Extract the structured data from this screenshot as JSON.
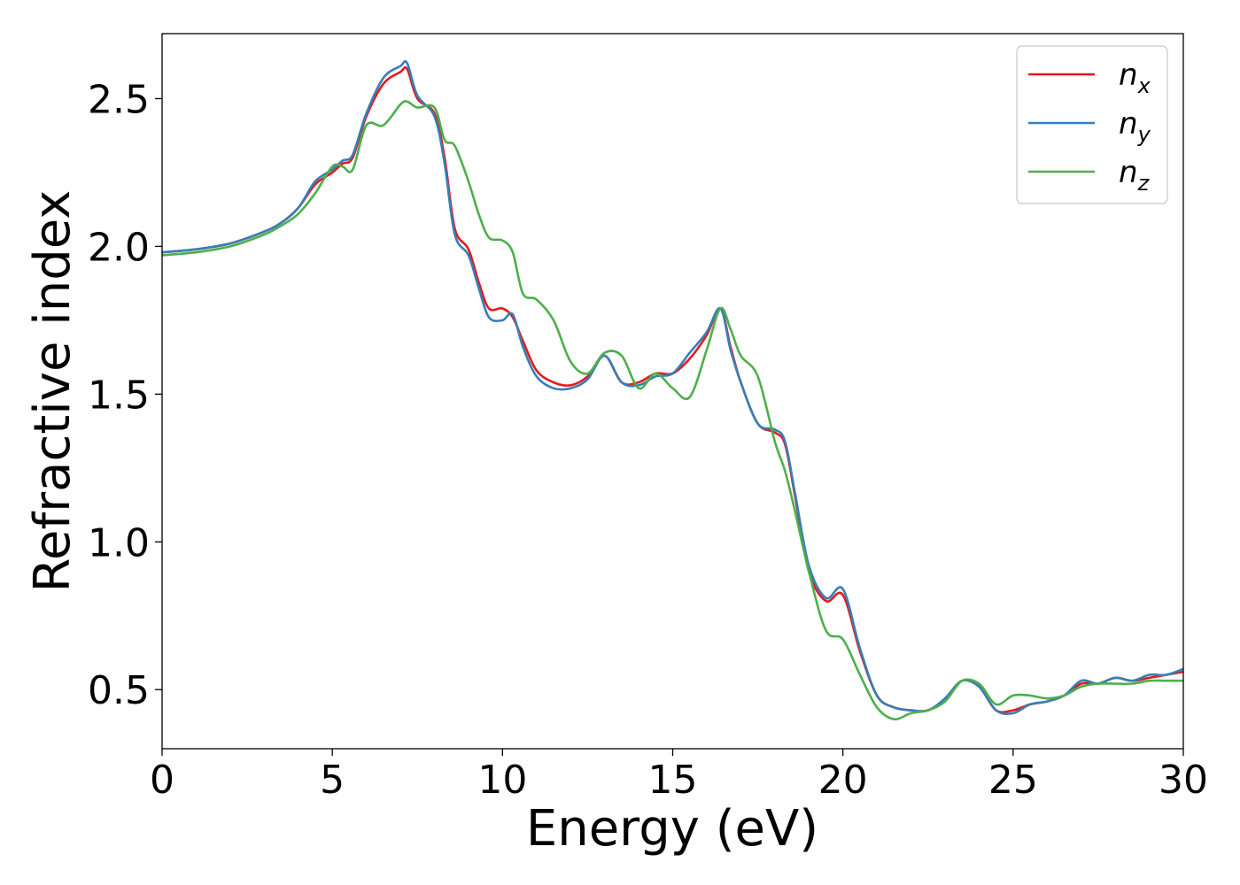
{
  "chart_data": {
    "type": "line",
    "xlabel": "Energy (eV)",
    "ylabel": "Refractive index",
    "xlim": [
      0,
      30
    ],
    "ylim": [
      0.3,
      2.72
    ],
    "xticks": [
      0,
      5,
      10,
      15,
      20,
      25,
      30
    ],
    "xtick_labels": [
      "0",
      "5",
      "10",
      "15",
      "20",
      "25",
      "30"
    ],
    "yticks": [
      0.5,
      1.0,
      1.5,
      2.0,
      2.5
    ],
    "ytick_labels": [
      "0.5",
      "1.0",
      "1.5",
      "2.0",
      "2.5"
    ],
    "grid": false,
    "legend_position": "top-right",
    "series": [
      {
        "name": "n_x",
        "legend_base": "n",
        "legend_sub": "x",
        "color": "#e41a1c",
        "x": [
          0,
          1,
          2,
          3,
          3.5,
          4,
          4.5,
          5,
          5.3,
          5.6,
          6,
          6.5,
          7,
          7.2,
          7.5,
          8,
          8.3,
          8.6,
          9,
          9.3,
          9.6,
          10,
          10.3,
          10.6,
          11,
          11.5,
          12,
          12.5,
          13,
          13.5,
          14,
          14.5,
          15,
          15.5,
          16,
          16.4,
          16.7,
          17,
          17.5,
          18,
          18.3,
          18.6,
          19,
          19.5,
          20,
          20.5,
          21,
          21.5,
          22,
          22.5,
          23,
          23.5,
          24,
          24.5,
          25,
          25.5,
          26,
          26.5,
          27,
          27.5,
          28,
          28.5,
          29,
          29.5,
          30
        ],
        "y": [
          1.98,
          1.99,
          2.01,
          2.05,
          2.08,
          2.13,
          2.21,
          2.25,
          2.28,
          2.3,
          2.44,
          2.55,
          2.59,
          2.6,
          2.5,
          2.45,
          2.3,
          2.06,
          1.99,
          1.88,
          1.79,
          1.79,
          1.76,
          1.68,
          1.58,
          1.54,
          1.53,
          1.56,
          1.63,
          1.54,
          1.54,
          1.57,
          1.57,
          1.62,
          1.7,
          1.79,
          1.66,
          1.54,
          1.4,
          1.37,
          1.33,
          1.15,
          0.9,
          0.8,
          0.82,
          0.63,
          0.48,
          0.44,
          0.43,
          0.43,
          0.47,
          0.53,
          0.51,
          0.43,
          0.43,
          0.45,
          0.46,
          0.48,
          0.52,
          0.52,
          0.54,
          0.53,
          0.54,
          0.55,
          0.56
        ]
      },
      {
        "name": "n_y",
        "legend_base": "n",
        "legend_sub": "y",
        "color": "#377eb8",
        "x": [
          0,
          1,
          2,
          3,
          3.5,
          4,
          4.5,
          5,
          5.3,
          5.6,
          6,
          6.5,
          7,
          7.2,
          7.5,
          8,
          8.3,
          8.6,
          9,
          9.3,
          9.6,
          10,
          10.3,
          10.6,
          11,
          11.5,
          12,
          12.5,
          13,
          13.5,
          14,
          14.5,
          15,
          15.5,
          16,
          16.4,
          16.7,
          17,
          17.5,
          18,
          18.3,
          18.6,
          19,
          19.5,
          20,
          20.5,
          21,
          21.5,
          22,
          22.5,
          23,
          23.5,
          24,
          24.5,
          25,
          25.5,
          26,
          26.5,
          27,
          27.5,
          28,
          28.5,
          29,
          29.5,
          30
        ],
        "y": [
          1.98,
          1.99,
          2.01,
          2.05,
          2.08,
          2.13,
          2.22,
          2.26,
          2.29,
          2.31,
          2.45,
          2.57,
          2.61,
          2.62,
          2.51,
          2.44,
          2.28,
          2.04,
          1.97,
          1.86,
          1.76,
          1.75,
          1.77,
          1.66,
          1.56,
          1.52,
          1.52,
          1.55,
          1.63,
          1.54,
          1.53,
          1.56,
          1.57,
          1.64,
          1.71,
          1.79,
          1.65,
          1.54,
          1.4,
          1.38,
          1.34,
          1.16,
          0.92,
          0.81,
          0.84,
          0.64,
          0.48,
          0.44,
          0.43,
          0.43,
          0.47,
          0.53,
          0.51,
          0.43,
          0.42,
          0.45,
          0.46,
          0.48,
          0.53,
          0.52,
          0.54,
          0.53,
          0.55,
          0.55,
          0.57
        ]
      },
      {
        "name": "n_z",
        "legend_base": "n",
        "legend_sub": "z",
        "color": "#4daf4a",
        "x": [
          0,
          1,
          2,
          3,
          3.5,
          4,
          4.5,
          5,
          5.3,
          5.6,
          6,
          6.5,
          7,
          7.2,
          7.5,
          8,
          8.3,
          8.6,
          9,
          9.3,
          9.6,
          10,
          10.3,
          10.6,
          11,
          11.5,
          12,
          12.5,
          13,
          13.5,
          14,
          14.5,
          15,
          15.5,
          16,
          16.4,
          16.7,
          17,
          17.5,
          18,
          18.3,
          18.6,
          19,
          19.5,
          20,
          20.5,
          21,
          21.5,
          22,
          22.5,
          23,
          23.5,
          24,
          24.5,
          25,
          25.5,
          26,
          26.5,
          27,
          27.5,
          28,
          28.5,
          29,
          29.5,
          30
        ],
        "y": [
          1.97,
          1.98,
          2.0,
          2.04,
          2.07,
          2.11,
          2.18,
          2.27,
          2.27,
          2.26,
          2.41,
          2.41,
          2.48,
          2.49,
          2.47,
          2.47,
          2.36,
          2.34,
          2.22,
          2.11,
          2.03,
          2.02,
          1.98,
          1.84,
          1.82,
          1.75,
          1.61,
          1.57,
          1.64,
          1.63,
          1.52,
          1.57,
          1.52,
          1.49,
          1.65,
          1.79,
          1.72,
          1.63,
          1.56,
          1.34,
          1.24,
          1.1,
          0.9,
          0.7,
          0.67,
          0.55,
          0.44,
          0.4,
          0.42,
          0.43,
          0.46,
          0.53,
          0.52,
          0.45,
          0.48,
          0.48,
          0.47,
          0.48,
          0.51,
          0.52,
          0.52,
          0.52,
          0.53,
          0.53,
          0.53
        ]
      }
    ]
  }
}
